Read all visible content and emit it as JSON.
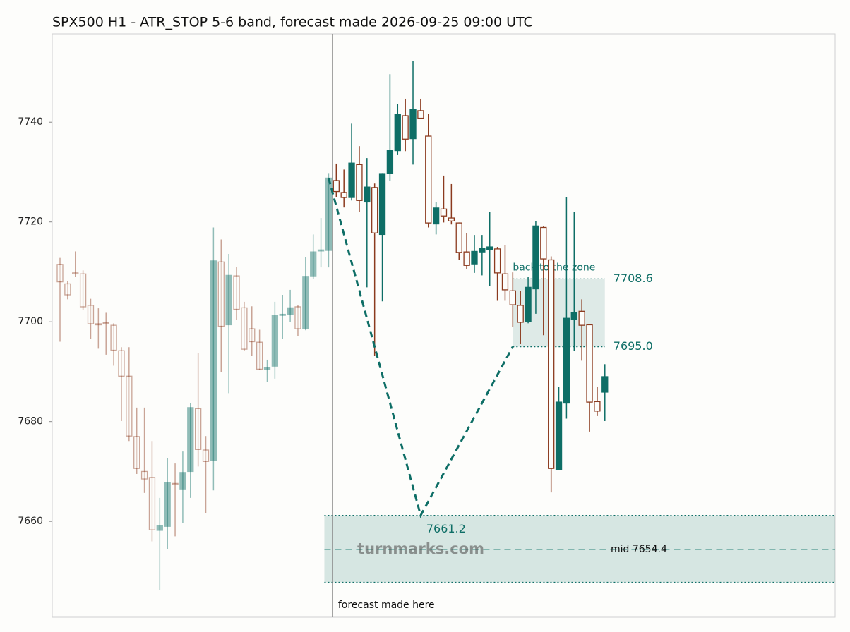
{
  "chart_data": {
    "type": "candlestick",
    "title": "SPX500 H1 - ATR_STOP 5-6 band, forecast made 2026-09-25 09:00 UTC",
    "ylim": [
      7640.8,
      7757.7
    ],
    "yticks": [
      7660,
      7680,
      7700,
      7720,
      7740
    ],
    "up_color": "#0e6e66",
    "down_color": "#8b3a1e",
    "series": [
      {
        "opacity": 0.45,
        "open": [
          7711.5,
          7707.6,
          7709.8,
          7709.6,
          7703.3,
          7699.6,
          7699.8,
          7699.3,
          7694.2,
          7689.1,
          7677,
          7670,
          7668.8,
          7658.2,
          7659,
          7667.6,
          7666.5,
          7670,
          7682.6,
          7674.3,
          7672.2,
          7712,
          7699.4,
          7709.2,
          7702.8,
          7698.6,
          7695.9,
          7690.4,
          7691.1,
          7701.3,
          7701.4,
          7703,
          7698.6,
          7709.2,
          7714.2,
          7714.3
        ],
        "high": [
          7712.8,
          7708.2,
          7714.1,
          7710.3,
          7704.6,
          7702.7,
          7701.8,
          7699.7,
          7694.9,
          7694.9,
          7682.8,
          7682.8,
          7676.1,
          7664.7,
          7672.6,
          7671.6,
          7674,
          7683.7,
          7693.8,
          7677.1,
          7718.9,
          7716.5,
          7713.6,
          7711,
          7704,
          7703.1,
          7698.4,
          7692.4,
          7704,
          7705.4,
          7706.4,
          7703.3,
          7713,
          7717.5,
          7720.8,
          7729.8
        ],
        "low": [
          7696,
          7704.5,
          7709,
          7702.3,
          7696.6,
          7694.6,
          7693.4,
          7691.2,
          7680.1,
          7676.1,
          7669.5,
          7665.7,
          7656,
          7646.2,
          7654.5,
          7657,
          7659.6,
          7664.7,
          7671,
          7661.6,
          7666.2,
          7690,
          7685.7,
          7700.4,
          7694.2,
          7693.2,
          7690.4,
          7688,
          7688.6,
          7696.6,
          7699.9,
          7697.2,
          7698.3,
          7708.6,
          7710.9,
          7710.9
        ],
        "close": [
          7708,
          7705.4,
          7709.6,
          7703,
          7699.6,
          7699.5,
          7699.6,
          7694.3,
          7689.1,
          7677.1,
          7670.6,
          7668.5,
          7658.3,
          7659.1,
          7667.8,
          7667.4,
          7669.8,
          7682.8,
          7674.4,
          7672,
          7712.2,
          7699.1,
          7709.3,
          7702.5,
          7694.5,
          7696,
          7690.5,
          7690.8,
          7701.3,
          7701.5,
          7702.8,
          7698.6,
          7709.1,
          7714,
          7714.4,
          7728.8
        ]
      },
      {
        "opacity": 1,
        "open": [
          7728.3,
          7725.9,
          7724.9,
          7731.5,
          7724,
          7726.9,
          7717.5,
          7729.7,
          7734.3,
          7741.3,
          7736.7,
          7742.3,
          7737.2,
          7719.6,
          7722.6,
          7720.8,
          7719.8,
          7714,
          7711.6,
          7714,
          7714.4,
          7714.6,
          7709.6,
          7706.2,
          7703.3,
          7700,
          7706.6,
          7718.9,
          7712.4,
          7670.3,
          7683.7,
          7700.5,
          7702.1,
          7699.4,
          7684,
          7685.9
        ],
        "high": [
          7731.7,
          7730.5,
          7739.7,
          7735.2,
          7732.8,
          7727.7,
          7729.8,
          7749.6,
          7743.7,
          7744.7,
          7752.2,
          7744.7,
          7741.7,
          7724,
          7729.3,
          7727.6,
          7719.9,
          7717.8,
          7717.4,
          7717.4,
          7722,
          7715,
          7715.3,
          7709.9,
          7706.2,
          7709,
          7720.2,
          7719.1,
          7713.1,
          7687,
          7725,
          7722,
          7704.5,
          7699.6,
          7687,
          7691.5
        ],
        "low": [
          7725,
          7722.9,
          7724.3,
          7722,
          7706.9,
          7693.1,
          7704.1,
          7728.3,
          7733.4,
          7734.2,
          7731.5,
          7740.6,
          7718.9,
          7717.5,
          7719.9,
          7719.5,
          7712.4,
          7710.6,
          7709.8,
          7709.3,
          7707.2,
          7704.2,
          7704.2,
          7698.9,
          7695.5,
          7699.7,
          7701.6,
          7697.3,
          7665.8,
          7670.3,
          7680.6,
          7694.1,
          7692.2,
          7678,
          7681.1,
          7680.1
        ],
        "close": [
          7726.1,
          7724.9,
          7731.8,
          7724.3,
          7727,
          7717.8,
          7729.7,
          7734.3,
          7741.6,
          7736.6,
          7742.5,
          7740.8,
          7719.8,
          7722.8,
          7721.2,
          7720.2,
          7713.9,
          7711.3,
          7714.1,
          7714.7,
          7715,
          7709.8,
          7706.4,
          7703.4,
          7699.9,
          7706.9,
          7719.2,
          7712.6,
          7670.6,
          7683.9,
          7700.7,
          7701.8,
          7699.3,
          7683.9,
          7682.1,
          7689
        ]
      }
    ],
    "forecast_label": "forecast made here",
    "forecast_path": [
      7728.8,
      7661.2,
      7695.0
    ],
    "target_zone": {
      "low": 7647.8,
      "high": 7661.2,
      "mid": {
        "value": 7654.4,
        "label": "mid 7654.4"
      }
    },
    "return_zone": {
      "label": "back to the zone",
      "low": {
        "value": 7695.0,
        "label": "7695.0"
      },
      "high": 7708.6
    },
    "watermark": "turnmarks.com"
  }
}
